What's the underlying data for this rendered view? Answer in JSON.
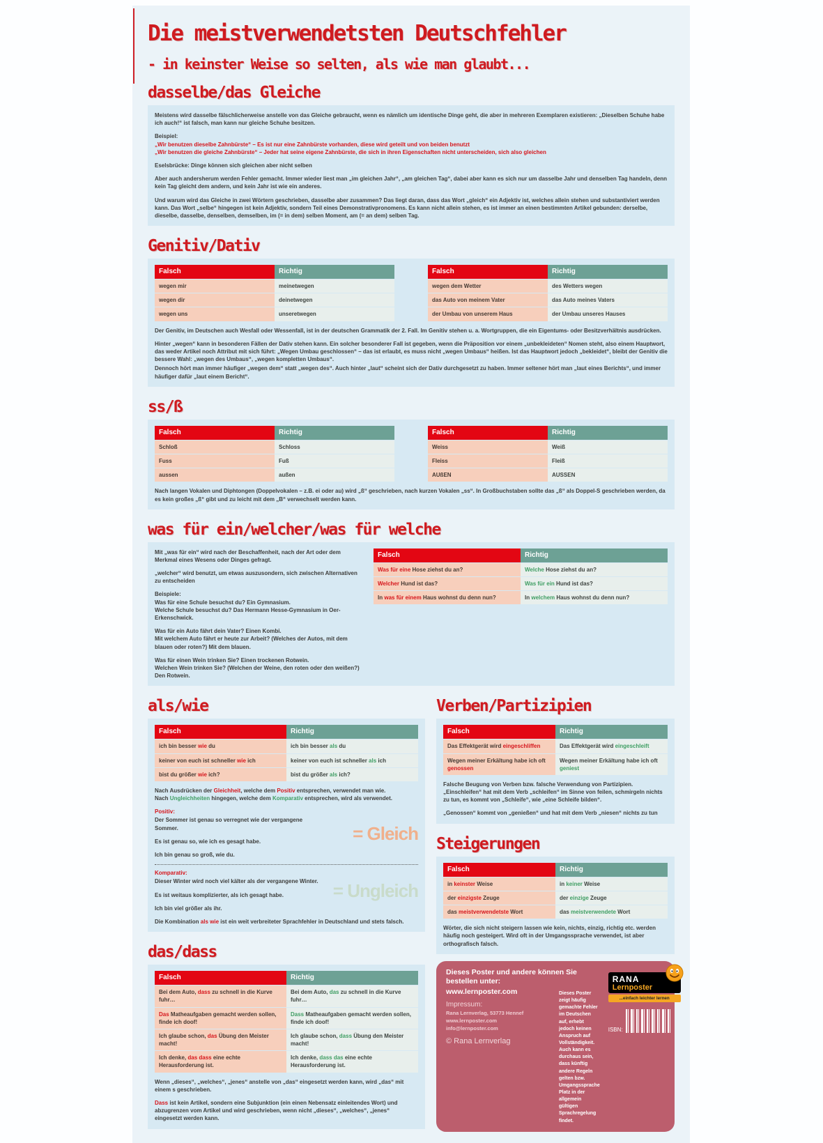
{
  "header": {
    "title": "Die meistverwendetsten Deutschfehler",
    "subtitle": "- in keinster Weise so selten, als wie man glaubt..."
  },
  "table_headers": {
    "falsch": "Falsch",
    "richtig": "Richtig"
  },
  "sections": {
    "dasselbe": {
      "title": "dasselbe/das Gleiche",
      "p1": "Meistens wird dasselbe fälschlicherweise anstelle von das Gleiche gebraucht, wenn es nämlich um identische Dinge geht, die aber in mehreren Exemplaren existieren: „Dieselben Schuhe habe ich auch!“ ist falsch, man kann nur gleiche Schuhe besitzen.",
      "beispiel_label": "Beispiel:",
      "b1": "„Wir benutzen dieselbe Zahnbürste“ – Es ist nur eine Zahnbürste vorhanden, diese wird geteilt und von beiden benutzt",
      "b2": "„Wir benutzen die gleiche Zahnbürste“ – Jeder hat seine eigene Zahnbürste, die sich in ihren Eigenschaften nicht unterscheiden, sich also gleichen",
      "esel": "Eselsbrücke: Dinge können sich gleichen aber nicht selben",
      "p2": "Aber auch andersherum werden Fehler gemacht. Immer wieder liest man „im gleichen Jahr“, „am gleichen Tag“, dabei aber kann es sich nur um dasselbe Jahr und denselben Tag handeln, denn kein Tag gleicht dem andern, und kein Jahr ist wie ein anderes.",
      "p3": "Und warum wird das Gleiche in zwei Wörtern geschrieben, dasselbe aber zusammen? Das liegt daran, dass das Wort „gleich“ ein Adjektiv ist, welches allein stehen und substantiviert werden kann. Das Wort „selbe“ hingegen ist kein Adjektiv, sondern Teil eines Demonstrativpronomens. Es kann nicht allein stehen, es ist immer an einen bestimmten Artikel gebunden: derselbe, dieselbe, dasselbe, denselben, demselben, im (= in dem) selben Moment, am (= an dem) selben Tag."
    },
    "genitiv": {
      "title": "Genitiv/Dativ",
      "table1": [
        {
          "f": [
            {
              "t": "wegen mir"
            }
          ],
          "r": [
            {
              "t": "meinetwegen"
            }
          ]
        },
        {
          "f": [
            {
              "t": "wegen dir"
            }
          ],
          "r": [
            {
              "t": "deinetwegen"
            }
          ]
        },
        {
          "f": [
            {
              "t": "wegen uns"
            }
          ],
          "r": [
            {
              "t": "unseretwegen"
            }
          ]
        }
      ],
      "table2": [
        {
          "f": [
            {
              "t": "wegen dem Wetter"
            }
          ],
          "r": [
            {
              "t": "des Wetters wegen"
            }
          ]
        },
        {
          "f": [
            {
              "t": "das Auto von meinem Vater"
            }
          ],
          "r": [
            {
              "t": "das Auto meines Vaters"
            }
          ]
        },
        {
          "f": [
            {
              "t": "der Umbau von unserem Haus"
            }
          ],
          "r": [
            {
              "t": "der Umbau unseres Hauses"
            }
          ]
        }
      ],
      "p1": "Der Genitiv, im Deutschen auch Wesfall oder Wessenfall, ist in der deutschen Grammatik der 2. Fall. Im Genitiv stehen u. a. Wortgruppen, die ein Eigentums- oder Besitzverhältnis ausdrücken.",
      "p2": "Hinter „wegen“ kann in besonderen Fällen der Dativ stehen kann. Ein solcher besonderer Fall ist gegeben, wenn die Präposition vor einem „unbekleideten“ Nomen steht, also einem Hauptwort, das weder Artikel noch Attribut mit sich führt: „Wegen Umbau geschlossen“ – das ist erlaubt, es muss nicht „wegen Umbaus“ heißen. Ist das Hauptwort jedoch „bekleidet“, bleibt der Genitiv die bessere Wahl: „wegen des Umbaus“, „wegen kompletten Umbaus“.",
      "p3": "Dennoch hört man immer häufiger „wegen dem“ statt „wegen des“. Auch hinter „laut“ scheint sich der Dativ durchgesetzt zu haben. Immer seltener hört man „laut eines Berichts“, und immer häufiger dafür „laut einem Bericht“."
    },
    "ss": {
      "title": "ss/ß",
      "table1": [
        {
          "f": [
            {
              "t": "Schloß"
            }
          ],
          "r": [
            {
              "t": "Schloss"
            }
          ]
        },
        {
          "f": [
            {
              "t": "Fuss"
            }
          ],
          "r": [
            {
              "t": "Fuß"
            }
          ]
        },
        {
          "f": [
            {
              "t": "aussen"
            }
          ],
          "r": [
            {
              "t": "außen"
            }
          ]
        }
      ],
      "table2": [
        {
          "f": [
            {
              "t": "Weiss"
            }
          ],
          "r": [
            {
              "t": "Weiß"
            }
          ]
        },
        {
          "f": [
            {
              "t": "Fleiss"
            }
          ],
          "r": [
            {
              "t": "Fleiß"
            }
          ]
        },
        {
          "f": [
            {
              "t": "AUßEN"
            }
          ],
          "r": [
            {
              "t": "AUSSEN"
            }
          ]
        }
      ],
      "p1": "Nach langen Vokalen und Diphtongen (Doppelvokalen – z.B. ei oder au) wird „ß“ geschrieben, nach kurzen Vokalen „ss“. In Großbuchstaben sollte das „ß“ als Doppel-S geschrieben werden, da es kein großes „ß“ gibt und zu leicht mit dem „B“ verwechselt werden kann."
    },
    "wasfuer": {
      "title": "was für ein/welcher/was für welche",
      "p1": "Mit „was für ein“ wird nach der Beschaffenheit, nach der Art oder dem Merkmal eines Wesens oder Dinges gefragt.",
      "p2": "„welcher“ wird benutzt, um etwas auszusondern, sich zwischen Alternativen zu entscheiden",
      "beispiele_label": "Beispiele:",
      "b1": "Was für eine Schule besuchst du? Ein Gymnasium.",
      "b2": "Welche Schule besuchst du? Das Hermann Hesse-Gymnasium in Oer-Erkenschwick.",
      "b3": "Was für ein Auto fährt dein Vater? Einen Kombi.",
      "b4": "Mit welchem Auto fährt er heute zur Arbeit? (Welches der Autos, mit dem blauen oder roten?) Mit dem blauen.",
      "b5": "Was für einen Wein trinken Sie? Einen trockenen Rotwein.",
      "b6": "Welchen Wein trinken Sie? (Welchen der Weine, den roten oder den weißen?) Den Rotwein.",
      "table": [
        {
          "f": [
            {
              "t": "Was für eine",
              "c": "r"
            },
            {
              "t": " Hose ziehst du an?"
            }
          ],
          "r": [
            {
              "t": "Welche",
              "c": "g"
            },
            {
              "t": " Hose ziehst du an?"
            }
          ]
        },
        {
          "f": [
            {
              "t": "Welcher",
              "c": "r"
            },
            {
              "t": " Hund ist das?"
            }
          ],
          "r": [
            {
              "t": "Was für ein",
              "c": "g"
            },
            {
              "t": " Hund ist das?"
            }
          ]
        },
        {
          "f": [
            {
              "t": "In "
            },
            {
              "t": "was für einem",
              "c": "r"
            },
            {
              "t": " Haus wohnst du denn nun?"
            }
          ],
          "r": [
            {
              "t": "In "
            },
            {
              "t": "welchem",
              "c": "g"
            },
            {
              "t": " Haus wohnst du denn nun?"
            }
          ]
        }
      ]
    },
    "alswie": {
      "title": "als/wie",
      "table": [
        {
          "f": [
            {
              "t": "ich bin besser "
            },
            {
              "t": "wie",
              "c": "r"
            },
            {
              "t": " du"
            }
          ],
          "r": [
            {
              "t": "ich bin besser "
            },
            {
              "t": "als",
              "c": "g"
            },
            {
              "t": " du"
            }
          ]
        },
        {
          "f": [
            {
              "t": "keiner von euch ist schneller "
            },
            {
              "t": "wie",
              "c": "r"
            },
            {
              "t": " ich"
            }
          ],
          "r": [
            {
              "t": "keiner von euch ist schneller "
            },
            {
              "t": "als",
              "c": "g"
            },
            {
              "t": " ich"
            }
          ]
        },
        {
          "f": [
            {
              "t": "bist du größer "
            },
            {
              "t": "wie",
              "c": "r"
            },
            {
              "t": " ich?"
            }
          ],
          "r": [
            {
              "t": "bist du größer "
            },
            {
              "t": "als",
              "c": "g"
            },
            {
              "t": " ich?"
            }
          ]
        }
      ],
      "rule1": [
        {
          "t": "Nach Ausdrücken der "
        },
        {
          "t": "Gleichheit",
          "c": "r"
        },
        {
          "t": ", welche dem "
        },
        {
          "t": "Positiv",
          "c": "r"
        },
        {
          "t": " entsprechen, verwendet man wie."
        }
      ],
      "rule2": [
        {
          "t": "Nach "
        },
        {
          "t": "Ungleichheiten",
          "c": "g"
        },
        {
          "t": " hingegen, welche dem "
        },
        {
          "t": "Komparativ",
          "c": "g"
        },
        {
          "t": " entsprechen, wird als verwendet."
        }
      ],
      "positiv_label": "Positiv:",
      "pos1": "Der Sommer ist genau so verregnet wie der vergangene Sommer.",
      "pos2": "Es ist genau so, wie ich es gesagt habe.",
      "pos3": "Ich bin genau so groß, wie du.",
      "gleich_mark": "= Gleich",
      "komparativ_label": "Komparativ:",
      "komp1": "Dieser Winter wird noch viel kälter als der vergangene Winter.",
      "komp2": "Es ist weitaus komplizierter, als ich gesagt habe.",
      "komp3": "Ich bin viel größer als ihr.",
      "ungleich_mark": "= Ungleich",
      "p2": [
        {
          "t": "Die Kombination "
        },
        {
          "t": "als wie",
          "c": "r"
        },
        {
          "t": " ist ein weit verbreiteter Sprachfehler in Deutschland und stets falsch."
        }
      ]
    },
    "verben": {
      "title": "Verben/Partizipien",
      "table": [
        {
          "f": [
            {
              "t": "Das Effektgerät wird "
            },
            {
              "t": "eingeschliffen",
              "c": "r"
            }
          ],
          "r": [
            {
              "t": "Das Effektgerät wird "
            },
            {
              "t": "eingeschleift",
              "c": "g"
            }
          ]
        },
        {
          "f": [
            {
              "t": "Wegen meiner Erkältung habe ich oft "
            },
            {
              "t": "genossen",
              "c": "r"
            }
          ],
          "r": [
            {
              "t": "Wegen meiner Erkältung habe ich oft "
            },
            {
              "t": "geniest",
              "c": "g"
            }
          ]
        }
      ],
      "p1": "Falsche Beugung von Verben bzw. falsche Verwendung von Partizipien. „Einschleifen“ hat mit dem Verb „schleifen“ im Sinne von feilen, schmirgeln nichts zu tun, es kommt von „Schleife“, wie „eine Schleife bilden“.",
      "p2": "„Genossen“ kommt von „genießen“ und hat mit dem Verb „niesen“ nichts zu tun"
    },
    "steigerungen": {
      "title": "Steigerungen",
      "table": [
        {
          "f": [
            {
              "t": "in "
            },
            {
              "t": "keinster",
              "c": "r"
            },
            {
              "t": " Weise"
            }
          ],
          "r": [
            {
              "t": "in "
            },
            {
              "t": "keiner",
              "c": "g"
            },
            {
              "t": " Weise"
            }
          ]
        },
        {
          "f": [
            {
              "t": "der "
            },
            {
              "t": "einzigste",
              "c": "r"
            },
            {
              "t": " Zeuge"
            }
          ],
          "r": [
            {
              "t": "der "
            },
            {
              "t": "einzige",
              "c": "g"
            },
            {
              "t": " Zeuge"
            }
          ]
        },
        {
          "f": [
            {
              "t": "das "
            },
            {
              "t": "meistverwendetste",
              "c": "r"
            },
            {
              "t": " Wort"
            }
          ],
          "r": [
            {
              "t": "das "
            },
            {
              "t": "meistverwendete",
              "c": "g"
            },
            {
              "t": " Wort"
            }
          ]
        }
      ],
      "p1": "Wörter, die sich nicht steigern lassen wie kein, nichts, einzig, richtig etc. werden häufig noch gesteigert. Wird oft in der Umgangssprache verwendet, ist aber orthografisch falsch."
    },
    "dasdass": {
      "title": "das/dass",
      "table": [
        {
          "f": [
            {
              "t": "Bei dem Auto, "
            },
            {
              "t": "dass",
              "c": "r"
            },
            {
              "t": " zu schnell in die Kurve fuhr…"
            }
          ],
          "r": [
            {
              "t": "Bei dem Auto, "
            },
            {
              "t": "das",
              "c": "g"
            },
            {
              "t": " zu schnell in die Kurve fuhr…"
            }
          ]
        },
        {
          "f": [
            {
              "t": "Das",
              "c": "r"
            },
            {
              "t": " Matheaufgaben gemacht werden sollen, finde ich doof!"
            }
          ],
          "r": [
            {
              "t": "Dass",
              "c": "g"
            },
            {
              "t": " Matheaufgaben gemacht werden sollen, finde ich doof!"
            }
          ]
        },
        {
          "f": [
            {
              "t": "Ich glaube schon, "
            },
            {
              "t": "das",
              "c": "r"
            },
            {
              "t": " Übung den Meister macht!"
            }
          ],
          "r": [
            {
              "t": "Ich glaube schon, "
            },
            {
              "t": "dass",
              "c": "g"
            },
            {
              "t": " Übung den Meister macht!"
            }
          ]
        },
        {
          "f": [
            {
              "t": "Ich denke, "
            },
            {
              "t": "das dass",
              "c": "r"
            },
            {
              "t": " eine echte Herausforderung ist."
            }
          ],
          "r": [
            {
              "t": "Ich denke, "
            },
            {
              "t": "dass das",
              "c": "g"
            },
            {
              "t": " eine echte Herausforderung ist."
            }
          ]
        }
      ],
      "p1": "Wenn „dieses“, „welches“, „jenes“ anstelle von „das“ eingesetzt werden kann, wird „das“ mit einem s geschrieben.",
      "p2": [
        {
          "t": "Dass",
          "c": "r"
        },
        {
          "t": " ist kein Artikel, sondern eine Subjunktion (ein einen Nebensatz einleitendes Wort) und abzugrenzen vom Artikel und wird geschrieben, wenn nicht „dieses“, „welches“, „jenes“ eingesetzt werden kann."
        }
      ]
    }
  },
  "footer": {
    "order_heading": "Dieses Poster und andere können Sie bestellen unter:",
    "order_url": "www.lernposter.com",
    "impressum_label": "Impressum:",
    "impressum_lines": [
      "Rana Lernverlag, 53773 Hennef",
      "www.lernposter.com",
      "info@lernposter.com"
    ],
    "copyright": "© Rana Lernverlag",
    "note": "Dieses Poster zeigt häufig gemachte Fehler im Deutschen auf, erhebt jedoch keinen Anspruch auf Vollständigkeit. Auch kann es durchaus sein, dass künftig andere Regeln gelten bzw. Umgangssprache Platz in der allgemein gültigen Sprachregelung findet.",
    "logo": {
      "brand": "RANA",
      "sub": "Lernposter",
      "tagline": "...einfach leichter lernen"
    },
    "isbn_label": "ISBN:"
  }
}
